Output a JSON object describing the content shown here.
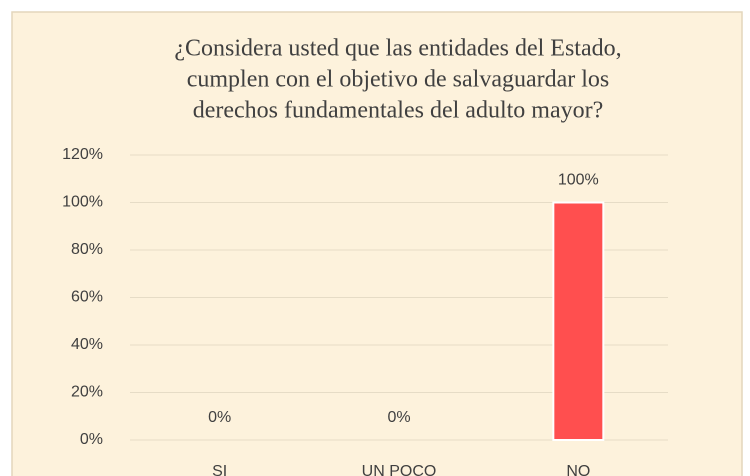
{
  "chart_data": {
    "type": "bar",
    "title": [
      "¿Considera usted que las entidades del Estado,",
      "cumplen con el objetivo de salvaguardar los",
      "derechos fundamentales del adulto mayor?"
    ],
    "categories": [
      "SI",
      "UN POCO",
      "NO"
    ],
    "values": [
      0,
      0,
      100
    ],
    "value_labels": [
      "0%",
      "0%",
      "100%"
    ],
    "color": "#ff4f4f",
    "ylim": [
      0,
      120
    ],
    "yticks": [
      {
        "value": 0,
        "label": "0%"
      },
      {
        "value": 20,
        "label": "20%"
      },
      {
        "value": 40,
        "label": "40%"
      },
      {
        "value": 60,
        "label": "60%"
      },
      {
        "value": 80,
        "label": "80%"
      },
      {
        "value": 100,
        "label": "100%"
      },
      {
        "value": 120,
        "label": "120%"
      }
    ],
    "grid": true
  }
}
